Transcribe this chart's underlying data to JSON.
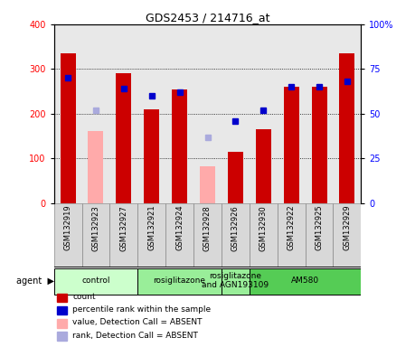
{
  "title": "GDS2453 / 214716_at",
  "samples": [
    "GSM132919",
    "GSM132923",
    "GSM132927",
    "GSM132921",
    "GSM132924",
    "GSM132928",
    "GSM132926",
    "GSM132930",
    "GSM132922",
    "GSM132925",
    "GSM132929"
  ],
  "counts": [
    335,
    null,
    290,
    210,
    255,
    null,
    115,
    165,
    260,
    260,
    335
  ],
  "counts_absent": [
    null,
    162,
    null,
    null,
    null,
    83,
    null,
    null,
    null,
    null,
    null
  ],
  "percentile_ranks": [
    70,
    null,
    64,
    60,
    62,
    null,
    46,
    52,
    65,
    65,
    68
  ],
  "percentile_ranks_absent": [
    null,
    52,
    null,
    null,
    null,
    37,
    null,
    null,
    null,
    null,
    null
  ],
  "ylim_left": [
    0,
    400
  ],
  "ylim_right": [
    0,
    100
  ],
  "yticks_left": [
    0,
    100,
    200,
    300,
    400
  ],
  "yticks_right": [
    0,
    25,
    50,
    75,
    100
  ],
  "ytick_labels_right": [
    "0",
    "25",
    "50",
    "75",
    "100%"
  ],
  "agent_groups": [
    {
      "label": "control",
      "start": 0,
      "end": 3,
      "color": "#ccffcc"
    },
    {
      "label": "rosiglitazone",
      "start": 3,
      "end": 6,
      "color": "#99ee99"
    },
    {
      "label": "rosiglitazone\nand AGN193109",
      "start": 6,
      "end": 7,
      "color": "#99ee99"
    },
    {
      "label": "AM580",
      "start": 7,
      "end": 11,
      "color": "#55cc55"
    }
  ],
  "bar_width": 0.55,
  "bar_color_present": "#cc0000",
  "bar_color_absent": "#ffaaaa",
  "dot_color_present": "#0000cc",
  "dot_color_absent": "#aaaadd",
  "plot_bg_color": "#e8e8e8",
  "label_box_color": "#d8d8d8",
  "legend_items": [
    {
      "label": "count",
      "color": "#cc0000"
    },
    {
      "label": "percentile rank within the sample",
      "color": "#0000cc"
    },
    {
      "label": "value, Detection Call = ABSENT",
      "color": "#ffaaaa"
    },
    {
      "label": "rank, Detection Call = ABSENT",
      "color": "#aaaadd"
    }
  ]
}
